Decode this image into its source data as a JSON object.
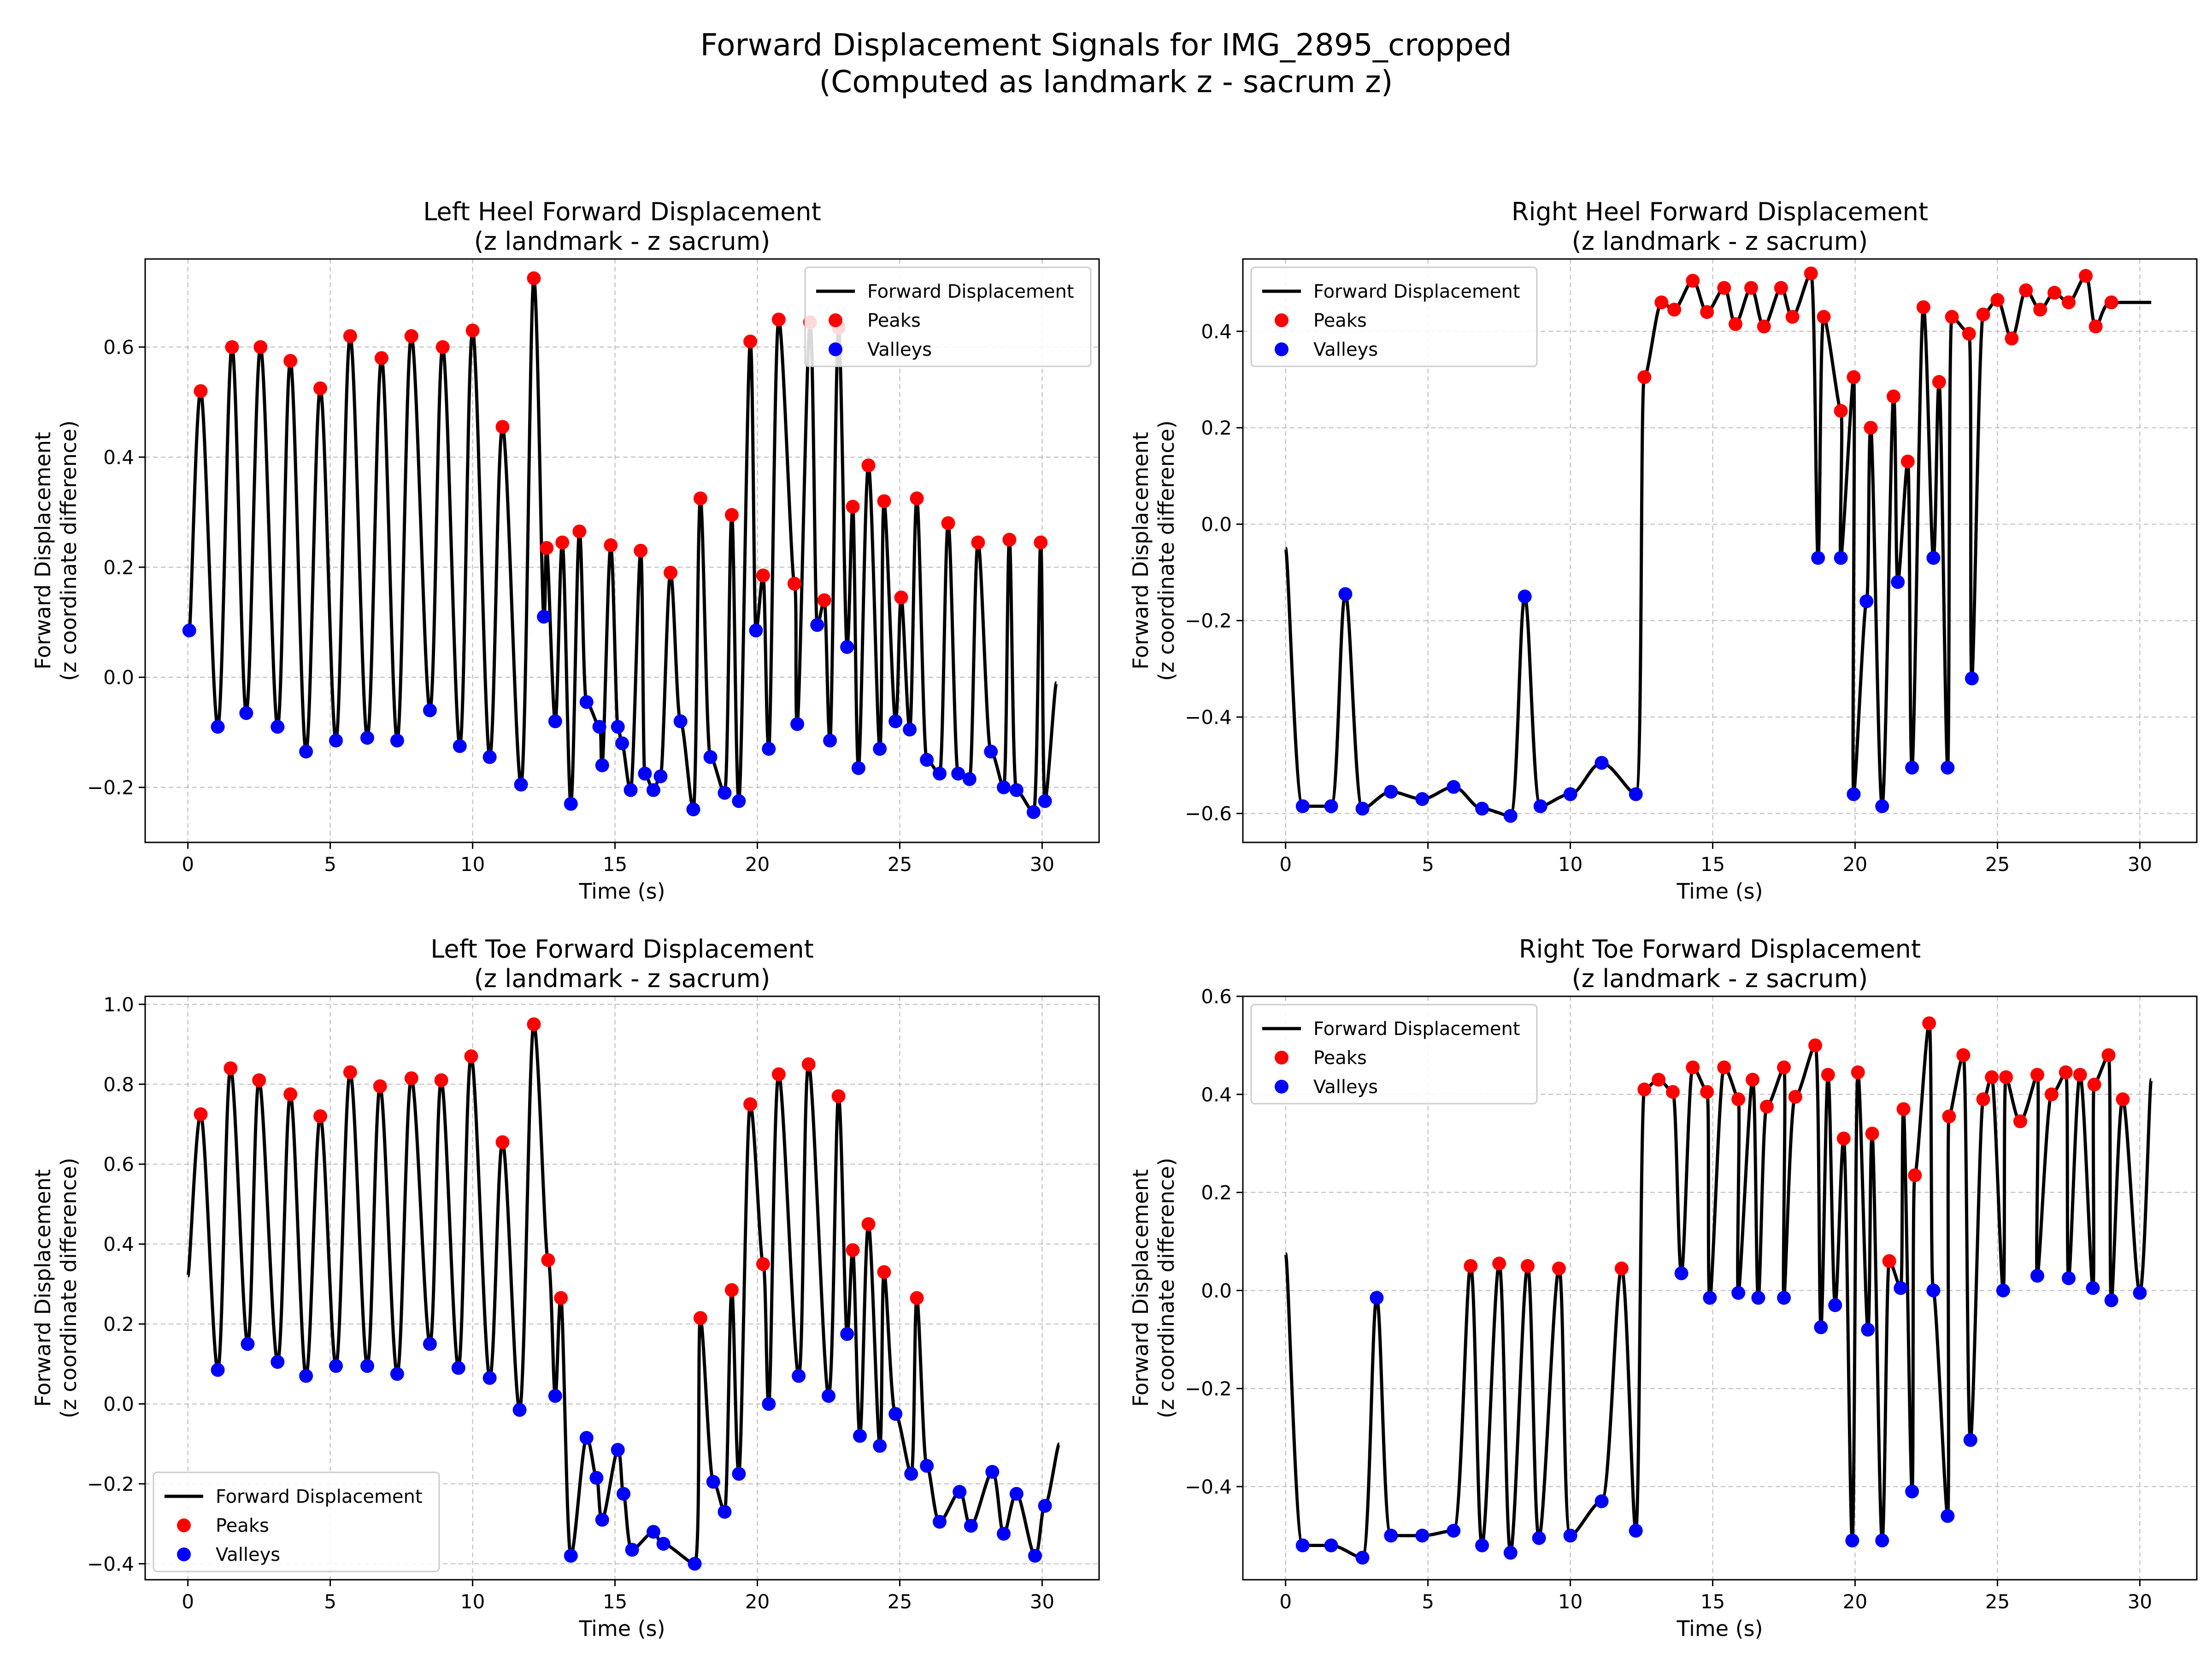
{
  "figure": {
    "suptitle_line1": "Forward Displacement Signals for IMG_2895_cropped",
    "suptitle_line2": "(Computed as landmark z - sacrum z)"
  },
  "colors": {
    "signal": "#000000",
    "peaks": "#ff0000",
    "valleys": "#0000ff",
    "grid": "#b0b0b0"
  },
  "chart_data": [
    {
      "type": "line",
      "title_line1": "Left Heel Forward Displacement",
      "title_line2": "(z landmark - z sacrum)",
      "xlabel": "Time (s)",
      "ylabel_line1": "Forward Displacement",
      "ylabel_line2": "(z coordinate difference)",
      "xlim": [
        -1.5,
        32.0
      ],
      "ylim": [
        -0.3,
        0.76
      ],
      "xticks": [
        0,
        5,
        10,
        15,
        20,
        25,
        30
      ],
      "yticks": [
        -0.2,
        0.0,
        0.2,
        0.4,
        0.6
      ],
      "grid": true,
      "legend_position": "upper right",
      "legend": [
        "Forward Displacement",
        "Peaks",
        "Valleys"
      ],
      "end": [
        30.5,
        -0.01
      ],
      "peaks": [
        [
          0.45,
          0.52
        ],
        [
          1.55,
          0.6
        ],
        [
          2.55,
          0.6
        ],
        [
          3.6,
          0.575
        ],
        [
          4.65,
          0.525
        ],
        [
          5.7,
          0.62
        ],
        [
          6.8,
          0.58
        ],
        [
          7.85,
          0.62
        ],
        [
          8.95,
          0.6
        ],
        [
          10.0,
          0.63
        ],
        [
          11.05,
          0.455
        ],
        [
          12.15,
          0.725
        ],
        [
          12.6,
          0.235
        ],
        [
          13.15,
          0.245
        ],
        [
          13.75,
          0.265
        ],
        [
          14.85,
          0.24
        ],
        [
          15.9,
          0.23
        ],
        [
          16.95,
          0.19
        ],
        [
          18.0,
          0.325
        ],
        [
          19.1,
          0.295
        ],
        [
          19.75,
          0.61
        ],
        [
          20.2,
          0.185
        ],
        [
          20.75,
          0.65
        ],
        [
          21.3,
          0.17
        ],
        [
          21.85,
          0.645
        ],
        [
          22.35,
          0.14
        ],
        [
          22.85,
          0.635
        ],
        [
          23.35,
          0.31
        ],
        [
          23.9,
          0.385
        ],
        [
          24.45,
          0.32
        ],
        [
          25.05,
          0.145
        ],
        [
          25.6,
          0.325
        ],
        [
          26.7,
          0.28
        ],
        [
          27.75,
          0.245
        ],
        [
          28.85,
          0.25
        ],
        [
          29.95,
          0.245
        ]
      ],
      "valleys": [
        [
          0.05,
          0.085
        ],
        [
          1.05,
          -0.09
        ],
        [
          2.05,
          -0.065
        ],
        [
          3.15,
          -0.09
        ],
        [
          4.15,
          -0.135
        ],
        [
          5.2,
          -0.115
        ],
        [
          6.3,
          -0.11
        ],
        [
          7.35,
          -0.115
        ],
        [
          8.5,
          -0.06
        ],
        [
          9.55,
          -0.125
        ],
        [
          10.6,
          -0.145
        ],
        [
          11.7,
          -0.195
        ],
        [
          12.5,
          0.11
        ],
        [
          12.9,
          -0.08
        ],
        [
          13.45,
          -0.23
        ],
        [
          14.0,
          -0.045
        ],
        [
          14.45,
          -0.09
        ],
        [
          14.55,
          -0.16
        ],
        [
          15.1,
          -0.09
        ],
        [
          15.25,
          -0.12
        ],
        [
          15.55,
          -0.205
        ],
        [
          16.05,
          -0.175
        ],
        [
          16.35,
          -0.205
        ],
        [
          16.6,
          -0.18
        ],
        [
          17.3,
          -0.08
        ],
        [
          17.75,
          -0.24
        ],
        [
          18.35,
          -0.145
        ],
        [
          18.85,
          -0.21
        ],
        [
          19.35,
          -0.225
        ],
        [
          19.95,
          0.085
        ],
        [
          20.4,
          -0.13
        ],
        [
          21.4,
          -0.085
        ],
        [
          22.1,
          0.095
        ],
        [
          22.55,
          -0.115
        ],
        [
          23.15,
          0.055
        ],
        [
          23.55,
          -0.165
        ],
        [
          24.3,
          -0.13
        ],
        [
          24.85,
          -0.08
        ],
        [
          25.35,
          -0.095
        ],
        [
          25.95,
          -0.15
        ],
        [
          26.4,
          -0.175
        ],
        [
          27.05,
          -0.175
        ],
        [
          27.45,
          -0.185
        ],
        [
          28.2,
          -0.135
        ],
        [
          28.65,
          -0.2
        ],
        [
          29.1,
          -0.205
        ],
        [
          29.7,
          -0.245
        ],
        [
          30.1,
          -0.225
        ]
      ]
    },
    {
      "type": "line",
      "title_line1": "Right Heel Forward Displacement",
      "title_line2": "(z landmark - z sacrum)",
      "xlabel": "Time (s)",
      "ylabel_line1": "Forward Displacement",
      "ylabel_line2": "(z coordinate difference)",
      "xlim": [
        -1.5,
        32.0
      ],
      "ylim": [
        -0.66,
        0.55
      ],
      "xticks": [
        0,
        5,
        10,
        15,
        20,
        25,
        30
      ],
      "yticks": [
        -0.6,
        -0.4,
        -0.2,
        0.0,
        0.2,
        0.4
      ],
      "grid": true,
      "legend_position": "upper left",
      "legend": [
        "Forward Displacement",
        "Peaks",
        "Valleys"
      ],
      "start": [
        0.0,
        -0.05
      ],
      "end": [
        30.4,
        0.46
      ],
      "peaks": [
        [
          12.6,
          0.305
        ],
        [
          13.2,
          0.46
        ],
        [
          13.65,
          0.445
        ],
        [
          14.3,
          0.505
        ],
        [
          14.8,
          0.44
        ],
        [
          15.4,
          0.49
        ],
        [
          15.8,
          0.415
        ],
        [
          16.35,
          0.49
        ],
        [
          16.8,
          0.41
        ],
        [
          17.4,
          0.49
        ],
        [
          17.8,
          0.43
        ],
        [
          18.45,
          0.52
        ],
        [
          18.9,
          0.43
        ],
        [
          19.5,
          0.235
        ],
        [
          19.95,
          0.305
        ],
        [
          20.55,
          0.2
        ],
        [
          21.35,
          0.265
        ],
        [
          21.85,
          0.13
        ],
        [
          22.4,
          0.45
        ],
        [
          22.95,
          0.295
        ],
        [
          23.4,
          0.43
        ],
        [
          24.0,
          0.395
        ],
        [
          24.5,
          0.435
        ],
        [
          25.0,
          0.465
        ],
        [
          25.5,
          0.385
        ],
        [
          26.0,
          0.485
        ],
        [
          26.5,
          0.445
        ],
        [
          27.0,
          0.48
        ],
        [
          27.5,
          0.46
        ],
        [
          28.1,
          0.515
        ],
        [
          28.45,
          0.41
        ],
        [
          29.0,
          0.46
        ]
      ],
      "valleys": [
        [
          0.6,
          -0.585
        ],
        [
          1.6,
          -0.585
        ],
        [
          2.1,
          -0.145
        ],
        [
          2.7,
          -0.59
        ],
        [
          3.7,
          -0.555
        ],
        [
          4.8,
          -0.57
        ],
        [
          5.9,
          -0.545
        ],
        [
          6.9,
          -0.59
        ],
        [
          7.9,
          -0.605
        ],
        [
          8.4,
          -0.15
        ],
        [
          8.95,
          -0.585
        ],
        [
          10.0,
          -0.56
        ],
        [
          11.1,
          -0.495
        ],
        [
          12.3,
          -0.56
        ],
        [
          18.7,
          -0.07
        ],
        [
          19.5,
          -0.07
        ],
        [
          19.95,
          -0.56
        ],
        [
          20.4,
          -0.16
        ],
        [
          20.95,
          -0.585
        ],
        [
          21.5,
          -0.12
        ],
        [
          22.0,
          -0.505
        ],
        [
          22.75,
          -0.07
        ],
        [
          23.25,
          -0.505
        ],
        [
          24.1,
          -0.32
        ]
      ]
    },
    {
      "type": "line",
      "title_line1": "Left Toe Forward Displacement",
      "title_line2": "(z landmark - z sacrum)",
      "xlabel": "Time (s)",
      "ylabel_line1": "Forward Displacement",
      "ylabel_line2": "(z coordinate difference)",
      "xlim": [
        -1.5,
        32.0
      ],
      "ylim": [
        -0.44,
        1.02
      ],
      "xticks": [
        0,
        5,
        10,
        15,
        20,
        25,
        30
      ],
      "yticks": [
        -0.4,
        -0.2,
        0.0,
        0.2,
        0.4,
        0.6,
        0.8,
        1.0
      ],
      "grid": true,
      "legend_position": "lower left",
      "legend": [
        "Forward Displacement",
        "Peaks",
        "Valleys"
      ],
      "start": [
        0.0,
        0.32
      ],
      "end": [
        30.6,
        -0.1
      ],
      "peaks": [
        [
          0.45,
          0.725
        ],
        [
          1.5,
          0.84
        ],
        [
          2.5,
          0.81
        ],
        [
          3.6,
          0.775
        ],
        [
          4.65,
          0.72
        ],
        [
          5.7,
          0.83
        ],
        [
          6.75,
          0.795
        ],
        [
          7.85,
          0.815
        ],
        [
          8.9,
          0.81
        ],
        [
          9.95,
          0.87
        ],
        [
          11.05,
          0.655
        ],
        [
          12.15,
          0.95
        ],
        [
          12.65,
          0.36
        ],
        [
          13.1,
          0.265
        ],
        [
          18.0,
          0.215
        ],
        [
          19.1,
          0.285
        ],
        [
          19.75,
          0.75
        ],
        [
          20.2,
          0.35
        ],
        [
          20.75,
          0.825
        ],
        [
          21.8,
          0.85
        ],
        [
          22.85,
          0.77
        ],
        [
          23.35,
          0.385
        ],
        [
          23.9,
          0.45
        ],
        [
          24.45,
          0.33
        ],
        [
          25.6,
          0.265
        ]
      ],
      "valleys": [
        [
          1.05,
          0.085
        ],
        [
          2.1,
          0.15
        ],
        [
          3.15,
          0.105
        ],
        [
          4.15,
          0.07
        ],
        [
          5.2,
          0.095
        ],
        [
          6.3,
          0.095
        ],
        [
          7.35,
          0.075
        ],
        [
          8.5,
          0.15
        ],
        [
          9.5,
          0.09
        ],
        [
          10.6,
          0.065
        ],
        [
          11.65,
          -0.015
        ],
        [
          12.9,
          0.02
        ],
        [
          13.45,
          -0.38
        ],
        [
          14.0,
          -0.085
        ],
        [
          14.35,
          -0.185
        ],
        [
          14.55,
          -0.29
        ],
        [
          15.1,
          -0.115
        ],
        [
          15.3,
          -0.225
        ],
        [
          15.6,
          -0.365
        ],
        [
          16.35,
          -0.32
        ],
        [
          16.7,
          -0.35
        ],
        [
          17.8,
          -0.4
        ],
        [
          18.45,
          -0.195
        ],
        [
          18.85,
          -0.27
        ],
        [
          19.35,
          -0.175
        ],
        [
          20.4,
          0.0
        ],
        [
          21.45,
          0.07
        ],
        [
          22.5,
          0.02
        ],
        [
          23.15,
          0.175
        ],
        [
          23.6,
          -0.08
        ],
        [
          24.3,
          -0.105
        ],
        [
          24.85,
          -0.025
        ],
        [
          25.4,
          -0.175
        ],
        [
          25.95,
          -0.155
        ],
        [
          26.4,
          -0.295
        ],
        [
          27.1,
          -0.22
        ],
        [
          27.5,
          -0.305
        ],
        [
          28.25,
          -0.17
        ],
        [
          28.65,
          -0.325
        ],
        [
          29.1,
          -0.225
        ],
        [
          29.75,
          -0.38
        ],
        [
          30.1,
          -0.255
        ]
      ]
    },
    {
      "type": "line",
      "title_line1": "Right Toe Forward Displacement",
      "title_line2": "(z landmark - z sacrum)",
      "xlabel": "Time (s)",
      "ylabel_line1": "Forward Displacement",
      "ylabel_line2": "(z coordinate difference)",
      "xlim": [
        -1.5,
        32.0
      ],
      "ylim": [
        -0.59,
        0.6
      ],
      "xticks": [
        0,
        5,
        10,
        15,
        20,
        25,
        30
      ],
      "yticks": [
        -0.4,
        -0.2,
        0.0,
        0.2,
        0.4,
        0.6
      ],
      "grid": true,
      "legend_position": "upper left",
      "legend": [
        "Forward Displacement",
        "Peaks",
        "Valleys"
      ],
      "start": [
        0.0,
        0.075
      ],
      "end": [
        30.4,
        0.43
      ],
      "peaks": [
        [
          6.5,
          0.05
        ],
        [
          7.5,
          0.055
        ],
        [
          8.5,
          0.05
        ],
        [
          9.6,
          0.045
        ],
        [
          11.8,
          0.045
        ],
        [
          12.6,
          0.41
        ],
        [
          13.1,
          0.43
        ],
        [
          13.6,
          0.405
        ],
        [
          14.3,
          0.455
        ],
        [
          14.8,
          0.405
        ],
        [
          15.4,
          0.455
        ],
        [
          15.9,
          0.39
        ],
        [
          16.4,
          0.43
        ],
        [
          16.9,
          0.375
        ],
        [
          17.5,
          0.455
        ],
        [
          17.9,
          0.395
        ],
        [
          18.6,
          0.5
        ],
        [
          19.05,
          0.44
        ],
        [
          19.6,
          0.31
        ],
        [
          20.1,
          0.445
        ],
        [
          20.6,
          0.32
        ],
        [
          21.2,
          0.06
        ],
        [
          21.7,
          0.37
        ],
        [
          22.1,
          0.235
        ],
        [
          22.6,
          0.545
        ],
        [
          23.3,
          0.355
        ],
        [
          23.8,
          0.48
        ],
        [
          24.5,
          0.39
        ],
        [
          24.8,
          0.435
        ],
        [
          25.3,
          0.435
        ],
        [
          25.8,
          0.345
        ],
        [
          26.4,
          0.44
        ],
        [
          26.9,
          0.4
        ],
        [
          27.4,
          0.445
        ],
        [
          27.9,
          0.44
        ],
        [
          28.4,
          0.42
        ],
        [
          28.9,
          0.48
        ],
        [
          29.4,
          0.39
        ]
      ],
      "valleys": [
        [
          0.6,
          -0.52
        ],
        [
          1.6,
          -0.52
        ],
        [
          2.7,
          -0.545
        ],
        [
          3.2,
          -0.015
        ],
        [
          3.7,
          -0.5
        ],
        [
          4.8,
          -0.5
        ],
        [
          5.9,
          -0.49
        ],
        [
          6.9,
          -0.52
        ],
        [
          7.9,
          -0.535
        ],
        [
          8.9,
          -0.505
        ],
        [
          10.0,
          -0.5
        ],
        [
          11.1,
          -0.43
        ],
        [
          12.3,
          -0.49
        ],
        [
          13.9,
          0.035
        ],
        [
          14.9,
          -0.015
        ],
        [
          15.9,
          -0.005
        ],
        [
          16.6,
          -0.015
        ],
        [
          17.5,
          -0.015
        ],
        [
          18.8,
          -0.075
        ],
        [
          19.3,
          -0.03
        ],
        [
          19.9,
          -0.51
        ],
        [
          20.45,
          -0.08
        ],
        [
          20.95,
          -0.51
        ],
        [
          21.6,
          0.005
        ],
        [
          22.0,
          -0.41
        ],
        [
          22.75,
          0.0
        ],
        [
          23.25,
          -0.46
        ],
        [
          24.05,
          -0.305
        ],
        [
          25.2,
          0.0
        ],
        [
          26.4,
          0.03
        ],
        [
          27.5,
          0.025
        ],
        [
          28.35,
          0.005
        ],
        [
          29.0,
          -0.02
        ],
        [
          30.0,
          -0.005
        ]
      ]
    }
  ]
}
